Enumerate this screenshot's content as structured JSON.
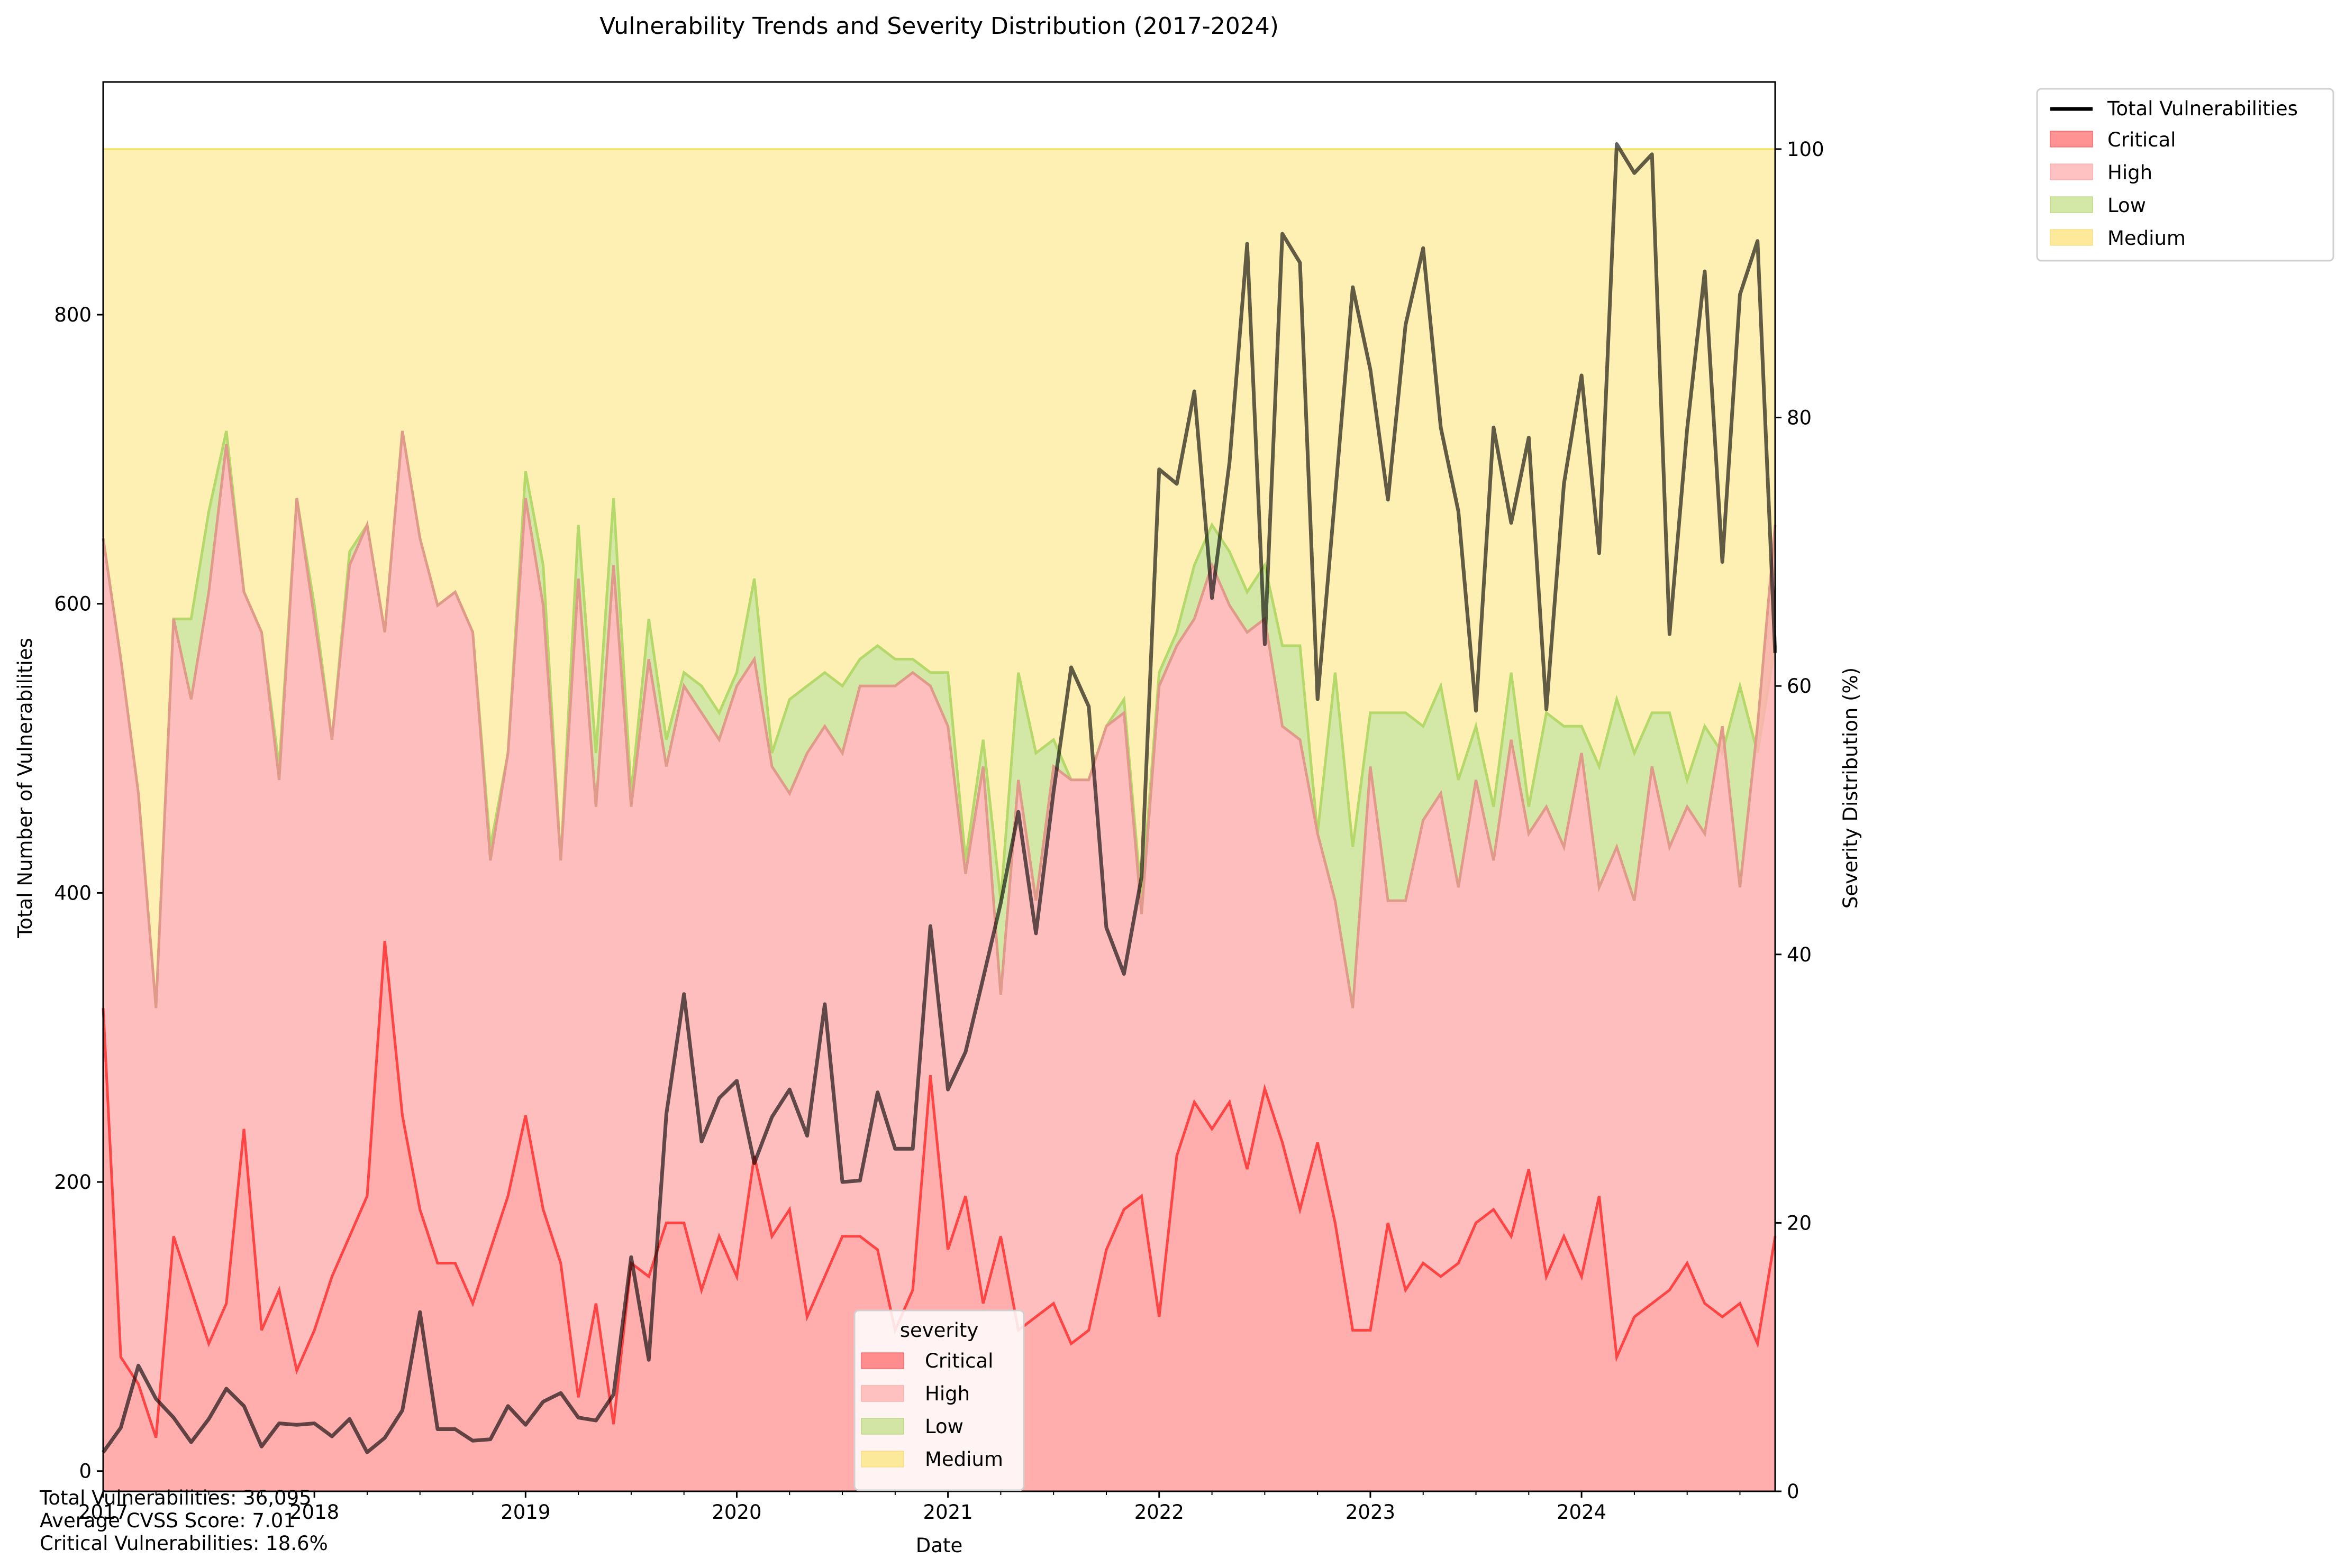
{
  "chart_data": {
    "type": "area",
    "title": "Vulnerability Trends and Severity Distribution (2017-2024)",
    "xlabel": "Date",
    "ylabel_left": "Total Number of Vulnerabilities",
    "ylabel_right": "Severity Distribution (%)",
    "x_tick_labels": [
      "2017",
      "2018",
      "2019",
      "2020",
      "2021",
      "2022",
      "2023",
      "2024"
    ],
    "left_ticks": [
      "0",
      "200",
      "400",
      "600",
      "800"
    ],
    "right_ticks": [
      "0",
      "20",
      "40",
      "60",
      "80",
      "100"
    ],
    "ylim_left": [
      -14,
      961
    ],
    "ylim_right": [
      0,
      105
    ],
    "x_start": "2017-01",
    "x_end": "2024-12",
    "legend_right": {
      "placement": "outside top-right",
      "items": [
        "Total Vulnerabilities",
        "Critical",
        "High",
        "Low",
        "Medium"
      ]
    },
    "legend_inner": {
      "placement": "lower center",
      "title": "severity",
      "items": [
        "Critical",
        "High",
        "Low",
        "Medium"
      ]
    },
    "stats": [
      "Total Vulnerabilities: 36,095",
      "Average CVSS Score: 7.01",
      "Critical Vulnerabilities: 18.6%"
    ],
    "colors": {
      "total_line": "#000000",
      "critical": "#ff4a4a",
      "high": "#ffb3b3",
      "low": "#c4e08a",
      "medium": "#fde99a"
    },
    "series": [
      {
        "name": "Total Vulnerabilities",
        "axis": "left",
        "values": [
          13,
          30,
          73,
          50,
          37,
          20,
          36,
          57,
          45,
          17,
          33,
          32,
          33,
          24,
          36,
          13,
          23,
          42,
          110,
          29,
          29,
          21,
          22,
          45,
          32,
          48,
          54,
          37,
          35,
          53,
          148,
          77,
          247,
          330,
          228,
          258,
          270,
          213,
          245,
          264,
          232,
          323,
          200,
          201,
          262,
          223,
          223,
          377,
          264,
          290,
          341,
          393,
          456,
          372,
          470,
          556,
          529,
          376,
          344,
          411,
          693,
          683,
          747,
          604,
          698,
          849,
          572,
          856,
          836,
          534,
          675,
          819,
          762,
          672,
          793,
          846,
          722,
          664,
          526,
          722,
          656,
          715,
          527,
          683,
          758,
          635,
          918,
          898,
          911,
          579,
          721,
          830,
          629,
          814,
          851,
          566
        ]
      },
      {
        "name": "Critical",
        "axis": "right",
        "values": [
          36,
          10,
          8,
          4,
          19,
          15,
          11,
          14,
          27,
          12,
          15,
          9,
          12,
          16,
          19,
          22,
          41,
          28,
          21,
          17,
          17,
          14,
          18,
          22,
          28,
          21,
          17,
          7,
          14,
          5,
          17,
          16,
          20,
          20,
          15,
          19,
          16,
          25,
          19,
          21,
          13,
          16,
          19,
          19,
          18,
          12,
          15,
          31,
          18,
          22,
          14,
          19,
          12,
          13,
          14,
          11,
          12,
          18,
          21,
          22,
          13,
          25,
          29,
          27,
          29,
          24,
          30,
          26,
          21,
          26,
          20,
          12,
          12,
          20,
          15,
          17,
          16,
          17,
          20,
          21,
          19,
          24,
          16,
          19,
          16,
          22,
          10,
          13,
          14,
          15,
          17,
          14,
          13,
          14,
          11,
          19
        ]
      },
      {
        "name": "High",
        "axis": "right",
        "values": [
          71,
          62,
          52,
          36,
          65,
          59,
          67,
          78,
          67,
          64,
          53,
          74,
          65,
          56,
          69,
          72,
          64,
          79,
          71,
          66,
          67,
          64,
          47,
          55,
          74,
          66,
          47,
          68,
          51,
          69,
          51,
          62,
          54,
          60,
          58,
          56,
          60,
          62,
          54,
          52,
          55,
          57,
          55,
          60,
          60,
          60,
          61,
          60,
          57,
          46,
          54,
          37,
          53,
          44,
          54,
          53,
          53,
          57,
          58,
          43,
          60,
          63,
          65,
          69,
          66,
          64,
          65,
          57,
          56,
          49,
          44,
          36,
          54,
          44,
          44,
          50,
          52,
          45,
          53,
          47,
          56,
          49,
          51,
          48,
          55,
          45,
          48,
          44,
          54,
          48,
          51,
          49,
          57,
          45,
          57,
          72
        ]
      },
      {
        "name": "Low",
        "axis": "right",
        "values": [
          0,
          0,
          0,
          0,
          0,
          0,
          0,
          0,
          0,
          0,
          0,
          0,
          0,
          0,
          0,
          0,
          0,
          0,
          0,
          0,
          0,
          0,
          0,
          0,
          0,
          0,
          0,
          0,
          0,
          0,
          0,
          0,
          0,
          0,
          0,
          0,
          0,
          0,
          0,
          0,
          0,
          0,
          0,
          0,
          0,
          0,
          0,
          0,
          0,
          0,
          0,
          0,
          0,
          0,
          0,
          0,
          0,
          0,
          0,
          0,
          0,
          0,
          0,
          0,
          0,
          0,
          0,
          0,
          0,
          0,
          0,
          0,
          0,
          0,
          0,
          0,
          0,
          0,
          0,
          0,
          0,
          0,
          0,
          0,
          0,
          0,
          0,
          0,
          0,
          0,
          0,
          0,
          0,
          0,
          0,
          0
        ]
      },
      {
        "name": "Medium",
        "axis": "right",
        "values": [
          0,
          0,
          0,
          0,
          0,
          0,
          0,
          0,
          0,
          0,
          0,
          0,
          0,
          0,
          0,
          0,
          0,
          0,
          0,
          0,
          0,
          0,
          0,
          0,
          0,
          0,
          0,
          0,
          0,
          0,
          0,
          0,
          0,
          0,
          0,
          0,
          0,
          0,
          0,
          0,
          0,
          0,
          0,
          0,
          0,
          0,
          0,
          0,
          0,
          0,
          0,
          0,
          0,
          0,
          0,
          0,
          0,
          0,
          0,
          0,
          0,
          0,
          0,
          0,
          0,
          0,
          0,
          0,
          0,
          0,
          0,
          0,
          0,
          0,
          0,
          0,
          0,
          0,
          0,
          0,
          0,
          0,
          0,
          0,
          0,
          0,
          0,
          0,
          0,
          0,
          0,
          0,
          0,
          0,
          0,
          0
        ]
      }
    ],
    "cumulative_top_low_pct": [
      71,
      62,
      52,
      36,
      65,
      65,
      73,
      79,
      67,
      64,
      54,
      74,
      66,
      56,
      70,
      72,
      64,
      79,
      71,
      66,
      67,
      64,
      48,
      55,
      76,
      69,
      47,
      72,
      55,
      74,
      52,
      65,
      56,
      61,
      60,
      58,
      61,
      68,
      55,
      59,
      60,
      61,
      60,
      62,
      63,
      62,
      62,
      61,
      61,
      47,
      56,
      44,
      61,
      55,
      56,
      53,
      53,
      57,
      59,
      44,
      61,
      64,
      69,
      72,
      70,
      67,
      69,
      63,
      63,
      49,
      61,
      48,
      58,
      58,
      58,
      57,
      60,
      53,
      57,
      51,
      61,
      51,
      58,
      57,
      57,
      54,
      59,
      55,
      58,
      58,
      53,
      57,
      55,
      60,
      55,
      63
    ]
  }
}
